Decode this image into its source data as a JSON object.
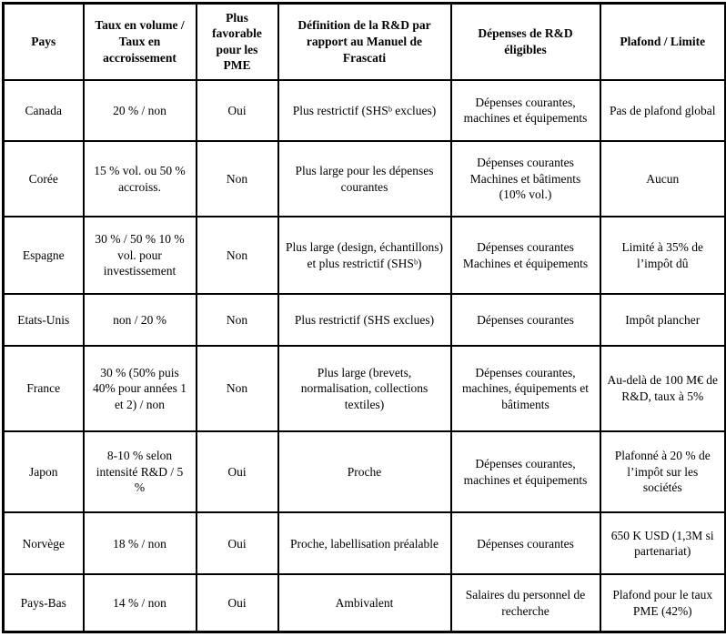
{
  "table": {
    "headers": [
      "Pays",
      "Taux en volume / Taux en accroissement",
      "Plus favorable pour les PME",
      "Définition de la R&D par rapport au Manuel de Frascati",
      "Dépenses de R&D éligibles",
      "Plafond / Limite"
    ],
    "rows": [
      {
        "pays": "Canada",
        "taux": "20 % / non",
        "pme": "Oui",
        "definition": "Plus restrictif (SHSᵇ exclues)",
        "depenses": "Dépenses courantes, machines et équipements",
        "plafond": "Pas de plafond global"
      },
      {
        "pays": "Corée",
        "taux": "15 % vol. ou 50 % accroiss.",
        "pme": "Non",
        "definition": "Plus large pour les dépenses courantes",
        "depenses": "Dépenses courantes Machines et bâtiments (10% vol.)",
        "plafond": "Aucun"
      },
      {
        "pays": "Espagne",
        "taux": "30 % / 50 % 10 % vol. pour investissement",
        "pme": "Non",
        "definition": "Plus large (design, échantillons) et plus restrictif (SHSᵇ)",
        "depenses": "Dépenses courantes Machines et équipements",
        "plafond": "Limité à 35% de l’impôt dû"
      },
      {
        "pays": "Etats-Unis",
        "taux": "non / 20 %",
        "pme": "Non",
        "definition": "Plus restrictif (SHS exclues)",
        "depenses": "Dépenses courantes",
        "plafond": "Impôt plancher"
      },
      {
        "pays": "France",
        "taux": "30 % (50% puis 40% pour années 1 et 2) / non",
        "pme": "Non",
        "definition": "Plus large (brevets, normalisation, collections textiles)",
        "depenses": "Dépenses courantes, machines, équipements et bâtiments",
        "plafond": "Au-delà de 100 M€ de R&D, taux à 5%"
      },
      {
        "pays": "Japon",
        "taux": "8-10 % selon intensité R&D / 5 %",
        "pme": "Oui",
        "definition": "Proche",
        "depenses": "Dépenses courantes, machines et équipements",
        "plafond": "Plafonné à 20 % de l’impôt sur les sociétés"
      },
      {
        "pays": "Norvège",
        "taux": "18 % / non",
        "pme": "Oui",
        "definition": "Proche, labellisation préalable",
        "depenses": "Dépenses courantes",
        "plafond": "650 K USD (1,3M si partenariat)"
      },
      {
        "pays": "Pays-Bas",
        "taux": "14 % / non",
        "pme": "Oui",
        "definition": "Ambivalent",
        "depenses": "Salaires du personnel de recherche",
        "plafond": "Plafond pour le taux PME (42%)"
      }
    ]
  }
}
